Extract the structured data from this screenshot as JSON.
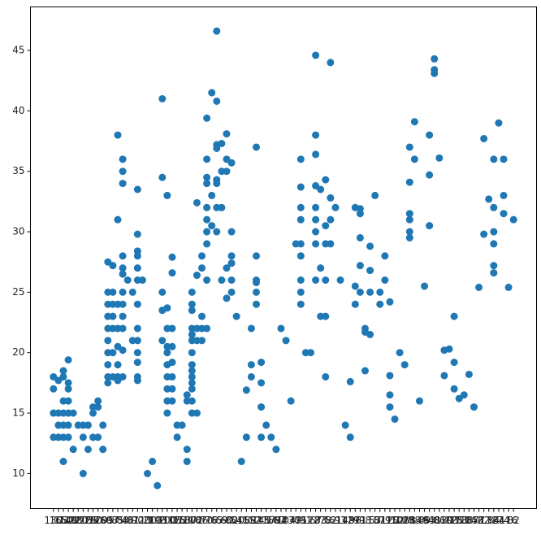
{
  "chart_data": {
    "type": "scatter",
    "color": "#1f77b4",
    "categories": [
      "130",
      "165",
      "150",
      "140",
      "198",
      "220",
      "215",
      "225",
      "190",
      "170",
      "160",
      "95",
      "97",
      "85",
      "88",
      "46",
      "87",
      "90",
      "113",
      "200",
      "210",
      "193",
      "?",
      "100",
      "105",
      "175",
      "153",
      "180",
      "110",
      "72",
      "86",
      "70",
      "76",
      "65",
      "69",
      "60",
      "80",
      "54",
      "208",
      "155",
      "112",
      "92",
      "145",
      "137",
      "158",
      "167",
      "94",
      "107",
      "230",
      "49",
      "75",
      "91",
      "122",
      "67",
      "83",
      "78",
      "52",
      "61",
      "93",
      "148",
      "129",
      "96",
      "71",
      "98",
      "115",
      "53",
      "81",
      "79",
      "120",
      "152",
      "102",
      "108",
      "68",
      "58",
      "149",
      "89",
      "63",
      "48",
      "66",
      "139",
      "103",
      "125",
      "133",
      "138",
      "135",
      "142",
      "77",
      "62",
      "132",
      "84",
      "64",
      "74",
      "116",
      "82"
    ],
    "x": [
      "130",
      "130",
      "130",
      "130",
      "165",
      "165",
      "165",
      "165",
      "150",
      "150",
      "150",
      "150",
      "150",
      "150",
      "150",
      "140",
      "140",
      "140",
      "140",
      "140",
      "140",
      "140",
      "198",
      "198",
      "220",
      "215",
      "215",
      "215",
      "225",
      "225",
      "190",
      "190",
      "190",
      "170",
      "170",
      "170",
      "160",
      "160",
      "95",
      "95",
      "95",
      "95",
      "95",
      "95",
      "95",
      "95",
      "95",
      "95",
      "97",
      "97",
      "97",
      "97",
      "97",
      "97",
      "97",
      "85",
      "85",
      "85",
      "85",
      "85",
      "85",
      "85",
      "85",
      "88",
      "88",
      "88",
      "88",
      "88",
      "88",
      "88",
      "88",
      "88",
      "88",
      "88",
      "88",
      "46",
      "87",
      "87",
      "90",
      "90",
      "90",
      "90",
      "90",
      "90",
      "90",
      "90",
      "90",
      "90",
      "90",
      "90",
      "90",
      "113",
      "200",
      "210",
      "193",
      "?",
      "?",
      "?",
      "?",
      "?",
      "100",
      "100",
      "100",
      "100",
      "100",
      "100",
      "100",
      "100",
      "100",
      "100",
      "105",
      "105",
      "105",
      "105",
      "105",
      "105",
      "105",
      "105",
      "175",
      "175",
      "153",
      "180",
      "180",
      "180",
      "180",
      "110",
      "110",
      "110",
      "110",
      "110",
      "110",
      "110",
      "110",
      "110",
      "110",
      "110",
      "110",
      "110",
      "110",
      "72",
      "72",
      "72",
      "72",
      "72",
      "86",
      "86",
      "86",
      "86",
      "86",
      "70",
      "70",
      "70",
      "70",
      "70",
      "70",
      "70",
      "70",
      "70",
      "70",
      "76",
      "76",
      "76",
      "65",
      "65",
      "65",
      "65",
      "65",
      "65",
      "65",
      "65",
      "69",
      "69",
      "69",
      "69",
      "60",
      "60",
      "60",
      "60",
      "60",
      "80",
      "80",
      "80",
      "80",
      "80",
      "80",
      "54",
      "208",
      "155",
      "155",
      "112",
      "112",
      "112",
      "92",
      "92",
      "92",
      "92",
      "92",
      "92",
      "145",
      "145",
      "145",
      "145",
      "137",
      "158",
      "167",
      "94",
      "107",
      "230",
      "49",
      "75",
      "75",
      "75",
      "75",
      "75",
      "75",
      "75",
      "75",
      "75",
      "91",
      "122",
      "67",
      "67",
      "67",
      "67",
      "67",
      "67",
      "67",
      "67",
      "67",
      "83",
      "83",
      "83",
      "78",
      "78",
      "78",
      "78",
      "78",
      "78",
      "52",
      "52",
      "52",
      "52",
      "61",
      "93",
      "148",
      "129",
      "129",
      "96",
      "96",
      "96",
      "71",
      "71",
      "71",
      "71",
      "71",
      "98",
      "98",
      "98",
      "115",
      "115",
      "115",
      "115",
      "53",
      "81",
      "81",
      "79",
      "79",
      "120",
      "120",
      "120",
      "120",
      "152",
      "102",
      "108",
      "68",
      "68",
      "68",
      "68",
      "68",
      "68",
      "58",
      "58",
      "149",
      "89",
      "63",
      "63",
      "63",
      "48",
      "48",
      "48",
      "66",
      "139",
      "139",
      "103",
      "125",
      "125",
      "125",
      "133",
      "138",
      "135",
      "142",
      "77",
      "62",
      "62",
      "132",
      "84",
      "84",
      "84",
      "84",
      "84",
      "84",
      "64",
      "74",
      "74",
      "74",
      "116",
      "82"
    ],
    "y": [
      18,
      17,
      15,
      13,
      15,
      13,
      14,
      17.7,
      15,
      14,
      16,
      13,
      18,
      11,
      18.5,
      17,
      13,
      16,
      14,
      15,
      19.4,
      17.5,
      12,
      15,
      14,
      10,
      13,
      14,
      14,
      12,
      15,
      13,
      15.5,
      16,
      15.5,
      13,
      12,
      14,
      27.5,
      25,
      24,
      22,
      21,
      20,
      19,
      18,
      17.5,
      23,
      27.2,
      24,
      22,
      20,
      18,
      25,
      23,
      38,
      31,
      24,
      22,
      20.5,
      19,
      18,
      17.7,
      36,
      35,
      34,
      28,
      27,
      26.5,
      25,
      24,
      23,
      22,
      20.2,
      18,
      26,
      25,
      21,
      33.5,
      29.8,
      28.4,
      28,
      27,
      26,
      24,
      22,
      21,
      20,
      19.2,
      18,
      17.7,
      26,
      10,
      11,
      9,
      41,
      34.5,
      25,
      23.5,
      21,
      33,
      23.7,
      22,
      20.5,
      20,
      19,
      18,
      17,
      16,
      15,
      27.9,
      26.6,
      22,
      20.5,
      19.2,
      18,
      17,
      16,
      14,
      13,
      14,
      16.5,
      16,
      12,
      11,
      25,
      24,
      23.5,
      22,
      21,
      20,
      19,
      18.5,
      18,
      17.5,
      17,
      16,
      15,
      21.5,
      32.4,
      26.4,
      22,
      21,
      15,
      28,
      27,
      23,
      21,
      22,
      39.4,
      36,
      34.5,
      34,
      32,
      31,
      30,
      29,
      26,
      22,
      41.5,
      30.5,
      33,
      46.6,
      40.8,
      37.2,
      36.9,
      34.3,
      34,
      32,
      30,
      37.3,
      35,
      32,
      26,
      38.1,
      36,
      35,
      27,
      24.5,
      35.7,
      30,
      28,
      26,
      25,
      27.4,
      23,
      11,
      16.9,
      13,
      22,
      19,
      18,
      37,
      28,
      26,
      25.8,
      25,
      24,
      19.2,
      17.5,
      15.5,
      13,
      14,
      13,
      12,
      22,
      21,
      16,
      29,
      36,
      33.7,
      32,
      31,
      29,
      28,
      26,
      25,
      24,
      20,
      20,
      44.6,
      38,
      36.4,
      33.8,
      32,
      31,
      30,
      29,
      26,
      33.5,
      27,
      23,
      34.3,
      30.5,
      29,
      26,
      23,
      18,
      44,
      32.8,
      31,
      29,
      32,
      26,
      14,
      17.6,
      13,
      32,
      25.5,
      24,
      31.9,
      31.5,
      29.5,
      27.2,
      25,
      22,
      18.5,
      21.7,
      28.8,
      26.8,
      25,
      21.5,
      33,
      25,
      24,
      28,
      26,
      24.2,
      18.1,
      16.5,
      15.5,
      14.5,
      20,
      19,
      37,
      34.1,
      31.5,
      31,
      30,
      29.5,
      39.1,
      36,
      16,
      25.5,
      38,
      34.7,
      30.5,
      44.3,
      43.4,
      43.1,
      36.1,
      18.1,
      20.2,
      20.3,
      23,
      19.2,
      17,
      16.2,
      16.5,
      18.2,
      15.5,
      25.4,
      37.7,
      29.8,
      32.7,
      36,
      32,
      30,
      29,
      27.2,
      26.6,
      39,
      36,
      33,
      31.5,
      25.4,
      31
    ],
    "ylim": [
      7.1,
      48.6
    ],
    "yticks": [
      10,
      15,
      20,
      25,
      30,
      35,
      40,
      45
    ]
  }
}
